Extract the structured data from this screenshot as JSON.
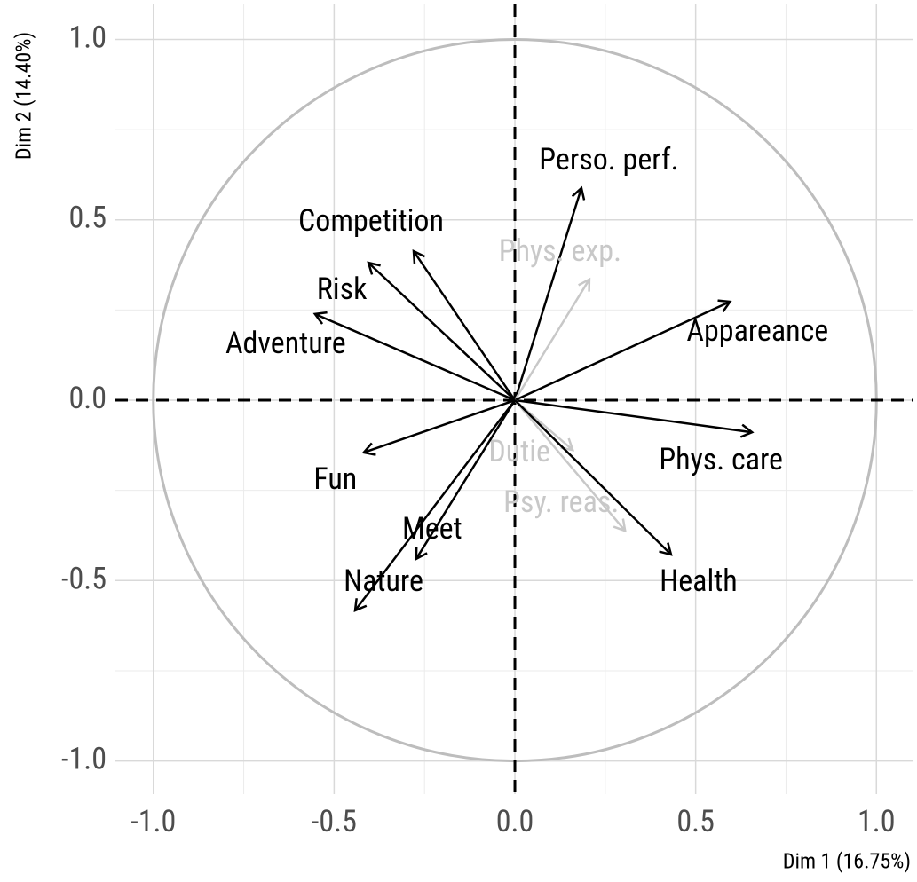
{
  "chart_data": {
    "type": "arrows",
    "xlabel": "Dim 1 (16.75%)",
    "ylabel": "Dim 2 (14.40%)",
    "xlim": [
      -1.105,
      1.1
    ],
    "ylim": [
      -1.092,
      1.097
    ],
    "xticks": [
      {
        "value": -1,
        "label": "-1.0"
      },
      {
        "value": -0.5,
        "label": "-0.5"
      },
      {
        "value": 0,
        "label": "0.0"
      },
      {
        "value": 0.5,
        "label": "0.5"
      },
      {
        "value": 1,
        "label": "1.0"
      }
    ],
    "yticks": [
      {
        "value": -1,
        "label": "-1.0"
      },
      {
        "value": -0.5,
        "label": "-0.5"
      },
      {
        "value": 0,
        "label": "0.0"
      },
      {
        "value": 0.5,
        "label": "0.5"
      },
      {
        "value": 1,
        "label": "1.0"
      }
    ],
    "minor_xticks": [
      -0.75,
      -0.25,
      0.25,
      0.75
    ],
    "minor_yticks": [
      -0.75,
      -0.25,
      0.25,
      0.75
    ],
    "grid": true,
    "circle_color": "#bdbdbd",
    "series": [
      {
        "name": "Perso. perf.",
        "color": "#000000",
        "x": 0.184,
        "y": 0.588
      },
      {
        "name": "Competition",
        "color": "#000000",
        "x": -0.28,
        "y": 0.413
      },
      {
        "name": "Phys. exp.",
        "color": "#c8c8c8",
        "x": 0.206,
        "y": 0.335
      },
      {
        "name": "Risk",
        "color": "#000000",
        "x": -0.405,
        "y": 0.381
      },
      {
        "name": "Appareance",
        "color": "#000000",
        "x": 0.595,
        "y": 0.273
      },
      {
        "name": "Adventure",
        "color": "#000000",
        "x": -0.553,
        "y": 0.239
      },
      {
        "name": "Phys. care",
        "color": "#000000",
        "x": 0.656,
        "y": -0.089
      },
      {
        "name": "Fun",
        "color": "#000000",
        "x": -0.418,
        "y": -0.145
      },
      {
        "name": "Dutie",
        "color": "#c8c8c8",
        "x": 0.16,
        "y": -0.138
      },
      {
        "name": "Psy. reas.",
        "color": "#c8c8c8",
        "x": 0.305,
        "y": -0.362
      },
      {
        "name": "Health",
        "color": "#000000",
        "x": 0.432,
        "y": -0.428
      },
      {
        "name": "Meet",
        "color": "#000000",
        "x": -0.273,
        "y": -0.44
      },
      {
        "name": "Nature",
        "color": "#000000",
        "x": -0.442,
        "y": -0.583
      }
    ]
  }
}
